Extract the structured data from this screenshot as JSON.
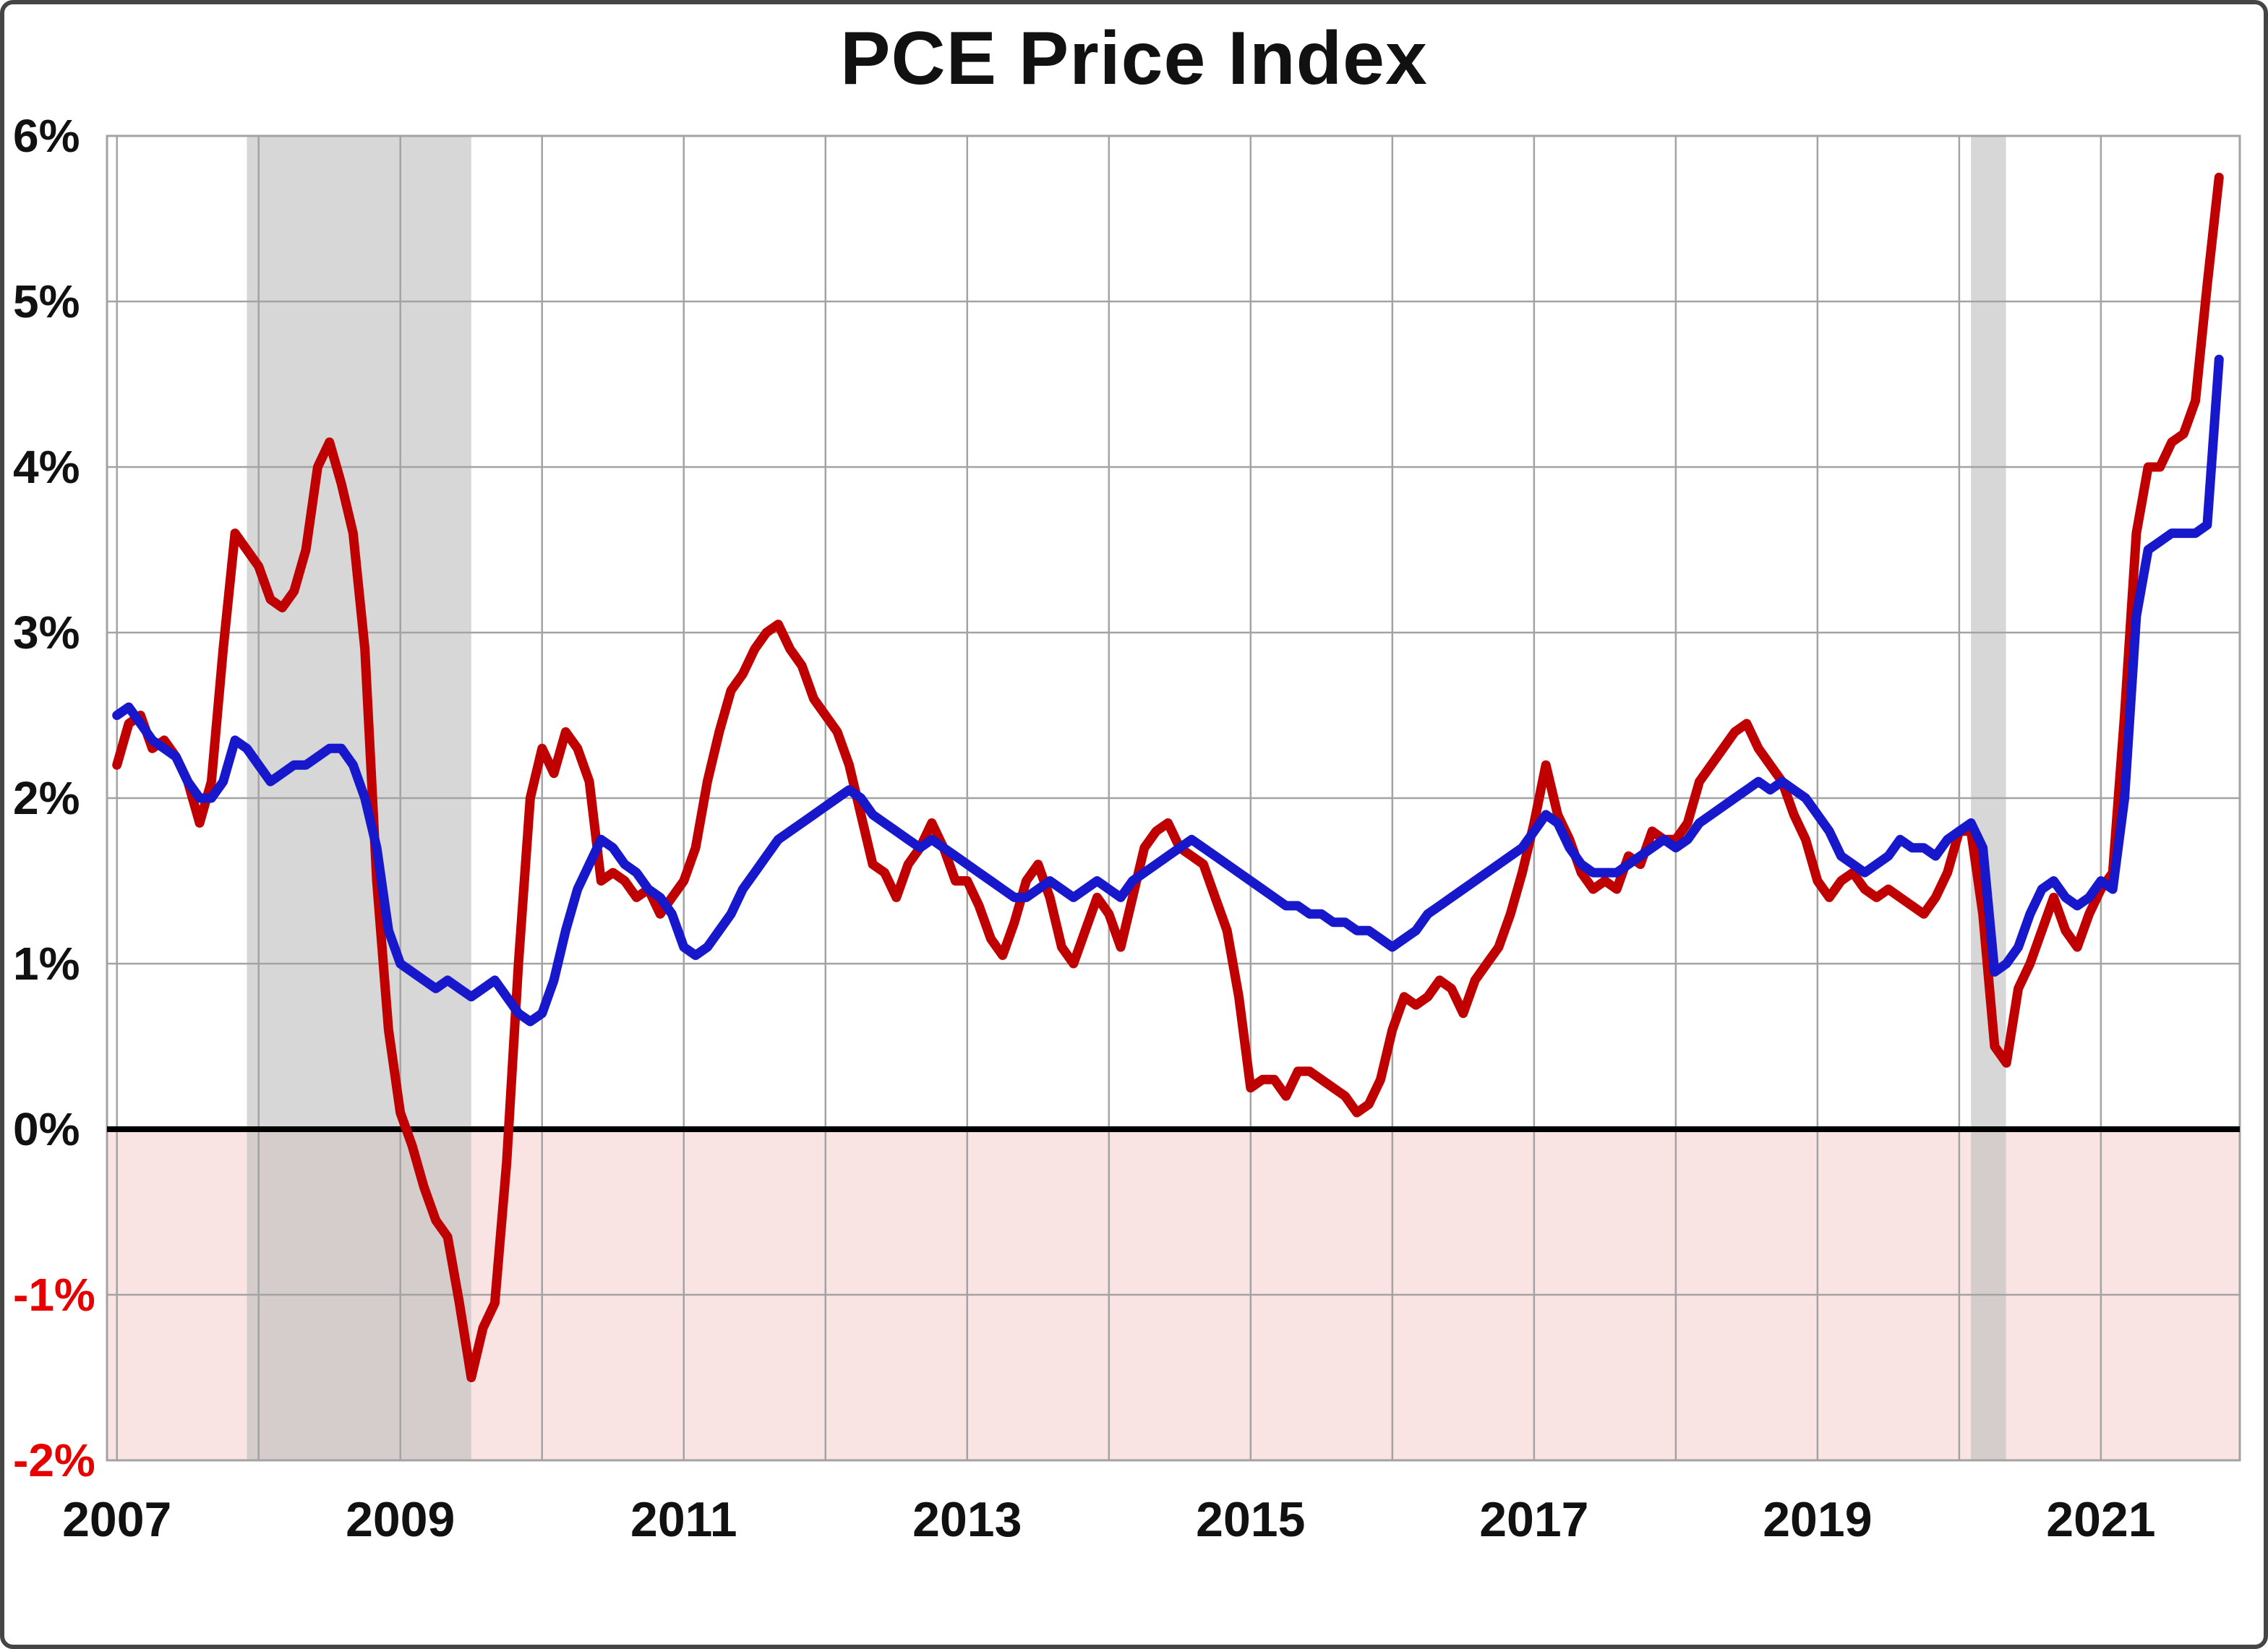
{
  "chart_data": {
    "type": "line",
    "title": "PCE Price Index",
    "xlabel": "",
    "ylabel": "",
    "xlim": [
      2006.93,
      2021.98
    ],
    "ylim": [
      -2,
      6
    ],
    "grid": true,
    "legend": "none",
    "x_ticks": [
      2007,
      2009,
      2011,
      2013,
      2015,
      2017,
      2019,
      2021
    ],
    "grid_years": [
      2007,
      2008,
      2009,
      2010,
      2011,
      2012,
      2013,
      2014,
      2015,
      2016,
      2017,
      2018,
      2019,
      2020,
      2021,
      2022
    ],
    "y_ticks": [
      {
        "value": 6,
        "label": "6%",
        "color": "#111111"
      },
      {
        "value": 5,
        "label": "5%",
        "color": "#111111"
      },
      {
        "value": 4,
        "label": "4%",
        "color": "#111111"
      },
      {
        "value": 3,
        "label": "3%",
        "color": "#111111"
      },
      {
        "value": 2,
        "label": "2%",
        "color": "#111111"
      },
      {
        "value": 1,
        "label": "1%",
        "color": "#111111"
      },
      {
        "value": 0,
        "label": "0%",
        "color": "#111111"
      },
      {
        "value": -1,
        "label": "-1%",
        "color": "#e60000"
      },
      {
        "value": -2,
        "label": "-2%",
        "color": "#e60000"
      }
    ],
    "recession_bands": [
      [
        2007.917,
        2009.5
      ],
      [
        2020.083,
        2020.33
      ]
    ],
    "zero_line_value": 0,
    "colors": {
      "red_series": "#c00000",
      "blue_series": "#1717cc",
      "negative_zone": "#fae3e3",
      "recession_band": "#bdbdbd",
      "gridline": "#a3a3a3",
      "zero_line": "#000000"
    },
    "x_start_year": 2007,
    "x_step_months": 1,
    "series": [
      {
        "name": "red-series",
        "color": "#c00000",
        "values": [
          2.2,
          2.45,
          2.5,
          2.3,
          2.35,
          2.25,
          2.1,
          1.85,
          2.1,
          2.9,
          3.6,
          3.5,
          3.4,
          3.2,
          3.15,
          3.25,
          3.5,
          4.0,
          4.15,
          3.9,
          3.6,
          2.9,
          1.5,
          0.6,
          0.1,
          -0.1,
          -0.35,
          -0.55,
          -0.65,
          -1.05,
          -1.5,
          -1.2,
          -1.05,
          -0.2,
          1.0,
          2.0,
          2.3,
          2.15,
          2.4,
          2.3,
          2.1,
          1.5,
          1.55,
          1.5,
          1.4,
          1.45,
          1.3,
          1.4,
          1.5,
          1.7,
          2.1,
          2.4,
          2.65,
          2.75,
          2.9,
          3.0,
          3.05,
          2.9,
          2.8,
          2.6,
          2.5,
          2.4,
          2.2,
          1.9,
          1.6,
          1.55,
          1.4,
          1.6,
          1.7,
          1.85,
          1.7,
          1.5,
          1.5,
          1.35,
          1.15,
          1.05,
          1.25,
          1.5,
          1.6,
          1.4,
          1.1,
          1.0,
          1.2,
          1.4,
          1.3,
          1.1,
          1.4,
          1.7,
          1.8,
          1.85,
          1.7,
          1.65,
          1.6,
          1.4,
          1.2,
          0.8,
          0.25,
          0.3,
          0.3,
          0.2,
          0.35,
          0.35,
          0.3,
          0.25,
          0.2,
          0.1,
          0.15,
          0.3,
          0.6,
          0.8,
          0.75,
          0.8,
          0.9,
          0.85,
          0.7,
          0.9,
          1.0,
          1.1,
          1.3,
          1.55,
          1.85,
          2.2,
          1.9,
          1.75,
          1.55,
          1.45,
          1.5,
          1.45,
          1.65,
          1.6,
          1.8,
          1.75,
          1.75,
          1.85,
          2.1,
          2.2,
          2.3,
          2.4,
          2.45,
          2.3,
          2.2,
          2.1,
          1.9,
          1.75,
          1.5,
          1.4,
          1.5,
          1.55,
          1.45,
          1.4,
          1.45,
          1.4,
          1.35,
          1.3,
          1.4,
          1.55,
          1.8,
          1.8,
          1.3,
          0.5,
          0.4,
          0.85,
          1.0,
          1.2,
          1.4,
          1.2,
          1.1,
          1.3,
          1.45,
          1.55,
          2.5,
          3.6,
          4.0,
          4.0,
          4.15,
          4.2,
          4.4,
          5.1,
          5.75
        ]
      },
      {
        "name": "blue-series",
        "color": "#1717cc",
        "values": [
          2.5,
          2.55,
          2.45,
          2.35,
          2.3,
          2.25,
          2.1,
          2.0,
          2.0,
          2.1,
          2.35,
          2.3,
          2.2,
          2.1,
          2.15,
          2.2,
          2.2,
          2.25,
          2.3,
          2.3,
          2.2,
          2.0,
          1.7,
          1.2,
          1.0,
          0.95,
          0.9,
          0.85,
          0.9,
          0.85,
          0.8,
          0.85,
          0.9,
          0.8,
          0.7,
          0.65,
          0.7,
          0.9,
          1.2,
          1.45,
          1.6,
          1.75,
          1.7,
          1.6,
          1.55,
          1.45,
          1.4,
          1.3,
          1.1,
          1.05,
          1.1,
          1.2,
          1.3,
          1.45,
          1.55,
          1.65,
          1.75,
          1.8,
          1.85,
          1.9,
          1.95,
          2.0,
          2.05,
          2.0,
          1.9,
          1.85,
          1.8,
          1.75,
          1.7,
          1.75,
          1.7,
          1.65,
          1.6,
          1.55,
          1.5,
          1.45,
          1.4,
          1.4,
          1.45,
          1.5,
          1.45,
          1.4,
          1.45,
          1.5,
          1.45,
          1.4,
          1.5,
          1.55,
          1.6,
          1.65,
          1.7,
          1.75,
          1.7,
          1.65,
          1.6,
          1.55,
          1.5,
          1.45,
          1.4,
          1.35,
          1.35,
          1.3,
          1.3,
          1.25,
          1.25,
          1.2,
          1.2,
          1.15,
          1.1,
          1.15,
          1.2,
          1.3,
          1.35,
          1.4,
          1.45,
          1.5,
          1.55,
          1.6,
          1.65,
          1.7,
          1.8,
          1.9,
          1.85,
          1.7,
          1.6,
          1.55,
          1.55,
          1.55,
          1.6,
          1.65,
          1.7,
          1.75,
          1.7,
          1.75,
          1.85,
          1.9,
          1.95,
          2.0,
          2.05,
          2.1,
          2.05,
          2.1,
          2.05,
          2.0,
          1.9,
          1.8,
          1.65,
          1.6,
          1.55,
          1.6,
          1.65,
          1.75,
          1.7,
          1.7,
          1.65,
          1.75,
          1.8,
          1.85,
          1.7,
          0.95,
          1.0,
          1.1,
          1.3,
          1.45,
          1.5,
          1.4,
          1.35,
          1.4,
          1.5,
          1.45,
          2.0,
          3.1,
          3.5,
          3.55,
          3.6,
          3.6,
          3.6,
          3.65,
          4.65
        ]
      }
    ]
  }
}
